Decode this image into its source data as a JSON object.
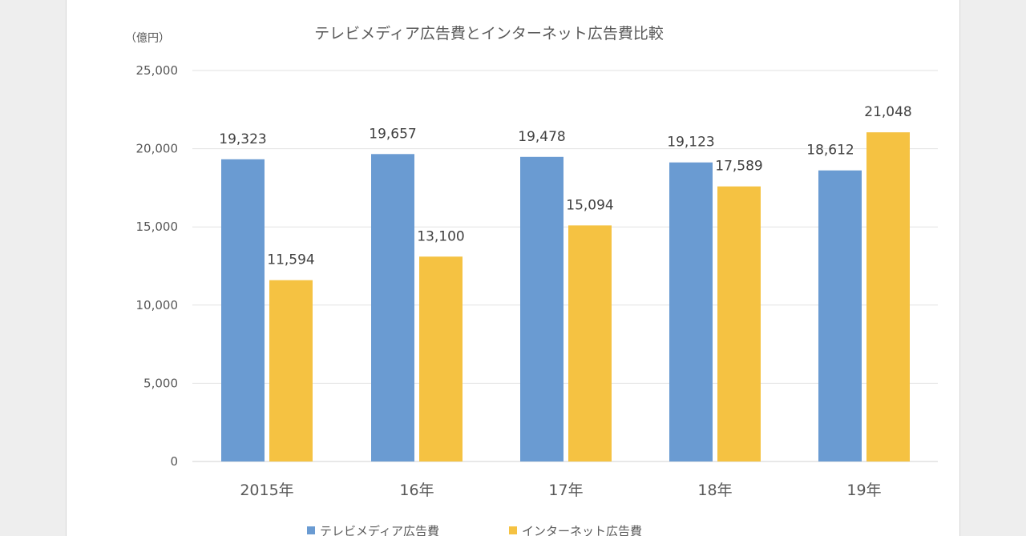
{
  "chart_data": {
    "type": "bar",
    "title": "テレビメディア広告費とインターネット広告費比較",
    "unit_label": "（億円）",
    "categories": [
      "2015年",
      "16年",
      "17年",
      "18年",
      "19年"
    ],
    "series": [
      {
        "name": "テレビメディア広告費",
        "color": "#6a9bd2",
        "values": [
          19323,
          19657,
          19478,
          19123,
          18612
        ],
        "labels": [
          "19,323",
          "19,657",
          "19,478",
          "19,123",
          "18,612"
        ]
      },
      {
        "name": "インターネット広告費",
        "color": "#f5c242",
        "values": [
          11594,
          13100,
          15094,
          17589,
          21048
        ],
        "labels": [
          "11,594",
          "13,100",
          "15,094",
          "17,589",
          "21,048"
        ]
      }
    ],
    "ylim": [
      0,
      25000
    ],
    "yticks": [
      0,
      5000,
      10000,
      15000,
      20000,
      25000
    ],
    "ytick_labels": [
      "0",
      "5,000",
      "10,000",
      "15,000",
      "20,000",
      "25,000"
    ],
    "grid": true,
    "legend_position": "bottom"
  }
}
